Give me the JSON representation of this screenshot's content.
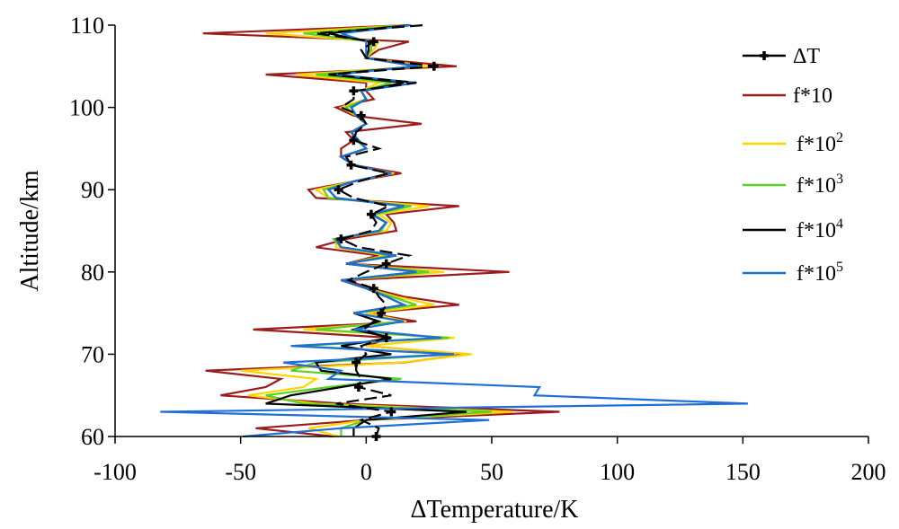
{
  "chart_data": {
    "type": "line",
    "xlabel": "ΔTemperature/K",
    "ylabel": "Altitude/km",
    "xlim": [
      -100,
      200
    ],
    "ylim": [
      60,
      110
    ],
    "x_ticks": [
      -100,
      -50,
      0,
      50,
      100,
      150,
      200
    ],
    "y_ticks": [
      60,
      70,
      80,
      90,
      100,
      110
    ],
    "x_tick_labels": [
      "-100",
      "-50",
      "0",
      "50",
      "100",
      "150",
      "200"
    ],
    "y_tick_labels": [
      "60",
      "70",
      "80",
      "90",
      "100",
      "110"
    ],
    "grid": false,
    "legend_position": "top-right",
    "altitudes": [
      60,
      61,
      62,
      63,
      64,
      65,
      66,
      67,
      68,
      69,
      70,
      71,
      72,
      73,
      74,
      75,
      76,
      77,
      78,
      79,
      80,
      81,
      82,
      83,
      84,
      85,
      86,
      87,
      88,
      89,
      90,
      91,
      92,
      93,
      94,
      95,
      96,
      97,
      98,
      99,
      100,
      101,
      102,
      103,
      104,
      105,
      106,
      107,
      108,
      109,
      110
    ],
    "series": [
      {
        "name": "ΔT",
        "legend_base": "ΔT",
        "legend_sup": "",
        "color": "#000000",
        "dashed": true,
        "markers": true,
        "values": [
          4,
          5,
          -2,
          10,
          -12,
          10,
          -3,
          -2,
          -4,
          -4,
          0,
          -2,
          8,
          -1,
          3,
          6,
          8,
          5,
          3,
          -7,
          0,
          8,
          17,
          -3,
          -10,
          2,
          4,
          2,
          9,
          -5,
          -11,
          -3,
          9,
          -6,
          -8,
          5,
          -5,
          -4,
          0,
          -2,
          -10,
          -5,
          -5,
          20,
          -15,
          27,
          0,
          -2,
          3,
          -20,
          23
        ]
      },
      {
        "name": "f*10",
        "legend_base": "f*10",
        "legend_sup": "",
        "color": "#9B1C1C",
        "dashed": false,
        "markers": false,
        "values": [
          -13,
          -44,
          0,
          77,
          -10,
          -58,
          -40,
          -34,
          -64,
          15,
          40,
          0,
          10,
          -45,
          20,
          0,
          37,
          15,
          2,
          -8,
          57,
          -8,
          5,
          -20,
          -8,
          12,
          11,
          8,
          37,
          -20,
          -23,
          -5,
          14,
          -5,
          -10,
          -10,
          -5,
          -8,
          22,
          -5,
          -12,
          3,
          0,
          0,
          -40,
          36,
          0,
          5,
          17,
          -65,
          17
        ]
      },
      {
        "name": "f*10^2",
        "legend_base": "f*10",
        "legend_sup": "2",
        "color": "#FFD400",
        "dashed": false,
        "markers": false,
        "values": [
          -11,
          -23,
          0,
          58,
          -20,
          -47,
          -25,
          -20,
          -50,
          14,
          42,
          0,
          35,
          -25,
          16,
          0,
          27,
          12,
          0,
          -10,
          31,
          -8,
          8,
          -12,
          -12,
          8,
          10,
          5,
          25,
          -15,
          -20,
          -5,
          11,
          -5,
          -10,
          0,
          -4,
          -6,
          0,
          -4,
          -10,
          0,
          -2,
          5,
          -28,
          25,
          0,
          3,
          5,
          -40,
          17
        ]
      },
      {
        "name": "f*10^3",
        "legend_base": "f*10",
        "legend_sup": "3",
        "color": "#5AD223",
        "dashed": false,
        "markers": false,
        "values": [
          -10,
          -10,
          0,
          50,
          -25,
          -40,
          -15,
          14,
          -30,
          -20,
          35,
          -27,
          33,
          -20,
          15,
          -5,
          20,
          10,
          0,
          -10,
          25,
          -8,
          10,
          -10,
          -13,
          6,
          8,
          3,
          18,
          -15,
          -17,
          -5,
          10,
          -5,
          -10,
          0,
          -4,
          -6,
          0,
          -4,
          -8,
          0,
          -2,
          10,
          -20,
          22,
          0,
          2,
          2,
          -25,
          17
        ]
      },
      {
        "name": "f*10^4",
        "legend_base": "f*10",
        "legend_sup": "4",
        "color": "#000000",
        "dashed": false,
        "markers": false,
        "values": [
          -5,
          -5,
          0,
          40,
          -40,
          -30,
          -10,
          10,
          -18,
          -20,
          10,
          -10,
          10,
          -5,
          5,
          -5,
          15,
          8,
          0,
          -10,
          20,
          -8,
          12,
          -10,
          -12,
          5,
          8,
          2,
          15,
          -12,
          -15,
          -5,
          10,
          -5,
          -10,
          0,
          -3,
          -6,
          0,
          -4,
          -6,
          0,
          -2,
          15,
          -15,
          20,
          0,
          1,
          1,
          -15,
          17
        ]
      },
      {
        "name": "f*10^5",
        "legend_base": "f*10",
        "legend_sup": "5",
        "color": "#1F6FD6",
        "dashed": false,
        "markers": false,
        "values": [
          -49,
          -10,
          49,
          -82,
          152,
          67,
          69,
          -15,
          -10,
          -33,
          35,
          -30,
          30,
          -5,
          15,
          -5,
          15,
          8,
          0,
          -10,
          20,
          -8,
          12,
          -10,
          -12,
          5,
          8,
          2,
          15,
          -12,
          -15,
          -5,
          10,
          -5,
          -10,
          0,
          -3,
          -6,
          0,
          -4,
          -6,
          0,
          -2,
          20,
          -12,
          20,
          0,
          0,
          0,
          -10,
          18
        ]
      }
    ]
  }
}
